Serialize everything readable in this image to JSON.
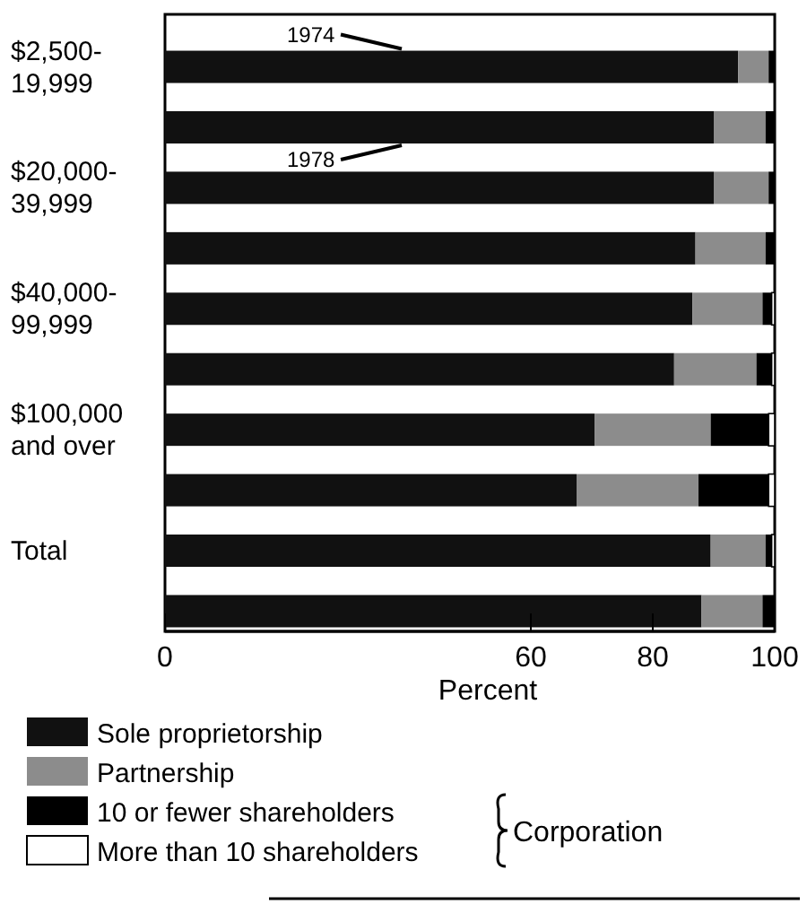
{
  "chart_data": {
    "type": "bar",
    "orientation": "horizontal",
    "stacked": true,
    "xlabel": "Percent",
    "categories": [
      "$2,500-19,999",
      null,
      "$20,000-39,999",
      null,
      "$40,000-99,999",
      null,
      "$100,000 and over",
      null,
      "Total",
      null
    ],
    "series": [
      {
        "name": "Sole proprietorship",
        "color": "#111111",
        "values": [
          94,
          90,
          90,
          87,
          86.5,
          83.5,
          70.5,
          67.5,
          89.5,
          88
        ]
      },
      {
        "name": "Partnership",
        "color": "#8c8c8c",
        "values": [
          5,
          8.5,
          9,
          11.5,
          11.5,
          13.5,
          19,
          20,
          9,
          10
        ]
      },
      {
        "name": "10 or fewer shareholders",
        "color": "#000000",
        "values": [
          1,
          1.5,
          1,
          1.5,
          1.5,
          2.5,
          9.5,
          11.5,
          1,
          2
        ]
      },
      {
        "name": "More than 10 shareholders",
        "color": "#ffffff",
        "values": [
          0,
          0,
          0,
          0,
          0.5,
          0.5,
          1,
          1,
          0.5,
          0
        ]
      }
    ],
    "xlim": [
      0,
      100
    ],
    "xticks": [
      0,
      60,
      80,
      100
    ],
    "legend": "bottom",
    "annotations": [
      "1974",
      "1978",
      "Corporation"
    ]
  }
}
